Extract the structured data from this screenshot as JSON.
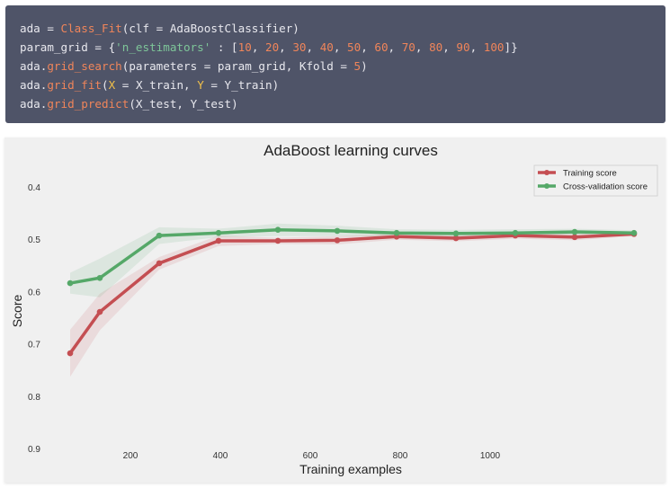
{
  "code": {
    "lines": [
      [
        {
          "t": "ada = ",
          "c": ""
        },
        {
          "t": "Class_Fit",
          "c": "fn"
        },
        {
          "t": "(clf = AdaBoostClassifier)",
          "c": ""
        }
      ],
      [
        {
          "t": "param_grid = {",
          "c": ""
        },
        {
          "t": "'n_estimators'",
          "c": "str"
        },
        {
          "t": " : [",
          "c": ""
        },
        {
          "t": "10",
          "c": "num"
        },
        {
          "t": ", ",
          "c": ""
        },
        {
          "t": "20",
          "c": "num"
        },
        {
          "t": ", ",
          "c": ""
        },
        {
          "t": "30",
          "c": "num"
        },
        {
          "t": ", ",
          "c": ""
        },
        {
          "t": "40",
          "c": "num"
        },
        {
          "t": ", ",
          "c": ""
        },
        {
          "t": "50",
          "c": "num"
        },
        {
          "t": ", ",
          "c": ""
        },
        {
          "t": "60",
          "c": "num"
        },
        {
          "t": ", ",
          "c": ""
        },
        {
          "t": "70",
          "c": "num"
        },
        {
          "t": ", ",
          "c": ""
        },
        {
          "t": "80",
          "c": "num"
        },
        {
          "t": ", ",
          "c": ""
        },
        {
          "t": "90",
          "c": "num"
        },
        {
          "t": ", ",
          "c": ""
        },
        {
          "t": "100",
          "c": "num"
        },
        {
          "t": "]}",
          "c": ""
        }
      ],
      [
        {
          "t": "ada.",
          "c": ""
        },
        {
          "t": "grid_search",
          "c": "fn"
        },
        {
          "t": "(parameters = param_grid, Kfold = ",
          "c": ""
        },
        {
          "t": "5",
          "c": "num"
        },
        {
          "t": ")",
          "c": ""
        }
      ],
      [
        {
          "t": "ada.",
          "c": ""
        },
        {
          "t": "grid_fit",
          "c": "fn"
        },
        {
          "t": "(",
          "c": ""
        },
        {
          "t": "X",
          "c": "kw"
        },
        {
          "t": " = X_train, ",
          "c": ""
        },
        {
          "t": "Y",
          "c": "kw"
        },
        {
          "t": " = Y_train)",
          "c": ""
        }
      ],
      [
        {
          "t": "ada.",
          "c": ""
        },
        {
          "t": "grid_predict",
          "c": "fn"
        },
        {
          "t": "(X_test, Y_test)",
          "c": ""
        }
      ]
    ]
  },
  "chart_data": {
    "type": "line",
    "title": "AdaBoost learning curves",
    "xlabel": "Training examples",
    "ylabel": "Score",
    "xlim": [
      -90,
      1390
    ],
    "ylim": [
      0.9,
      0.4
    ],
    "y_inverted": true,
    "xticks": [
      200,
      400,
      600,
      800,
      1000
    ],
    "yticks": [
      0.4,
      0.5,
      0.6,
      0.7,
      0.8,
      0.9
    ],
    "grid": false,
    "legend": "top-right",
    "x": [
      66,
      132,
      264,
      396,
      528,
      660,
      792,
      924,
      1056,
      1188,
      1320
    ],
    "series": [
      {
        "name": "Training score",
        "color": "#c44e52",
        "values": [
          0.718,
          0.639,
          0.546,
          0.503,
          0.503,
          0.502,
          0.495,
          0.498,
          0.493,
          0.496,
          0.49
        ],
        "std": [
          0.045,
          0.035,
          0.012,
          0.01,
          0.006,
          0.008,
          0.006,
          0.006,
          0.006,
          0.006,
          0.004
        ]
      },
      {
        "name": "Cross-validation score",
        "color": "#55a868",
        "values": [
          0.584,
          0.574,
          0.493,
          0.488,
          0.482,
          0.484,
          0.488,
          0.489,
          0.488,
          0.486,
          0.488
        ],
        "std": [
          0.02,
          0.037,
          0.016,
          0.008,
          0.012,
          0.01,
          0.007,
          0.007,
          0.007,
          0.006,
          0.005
        ]
      }
    ]
  }
}
